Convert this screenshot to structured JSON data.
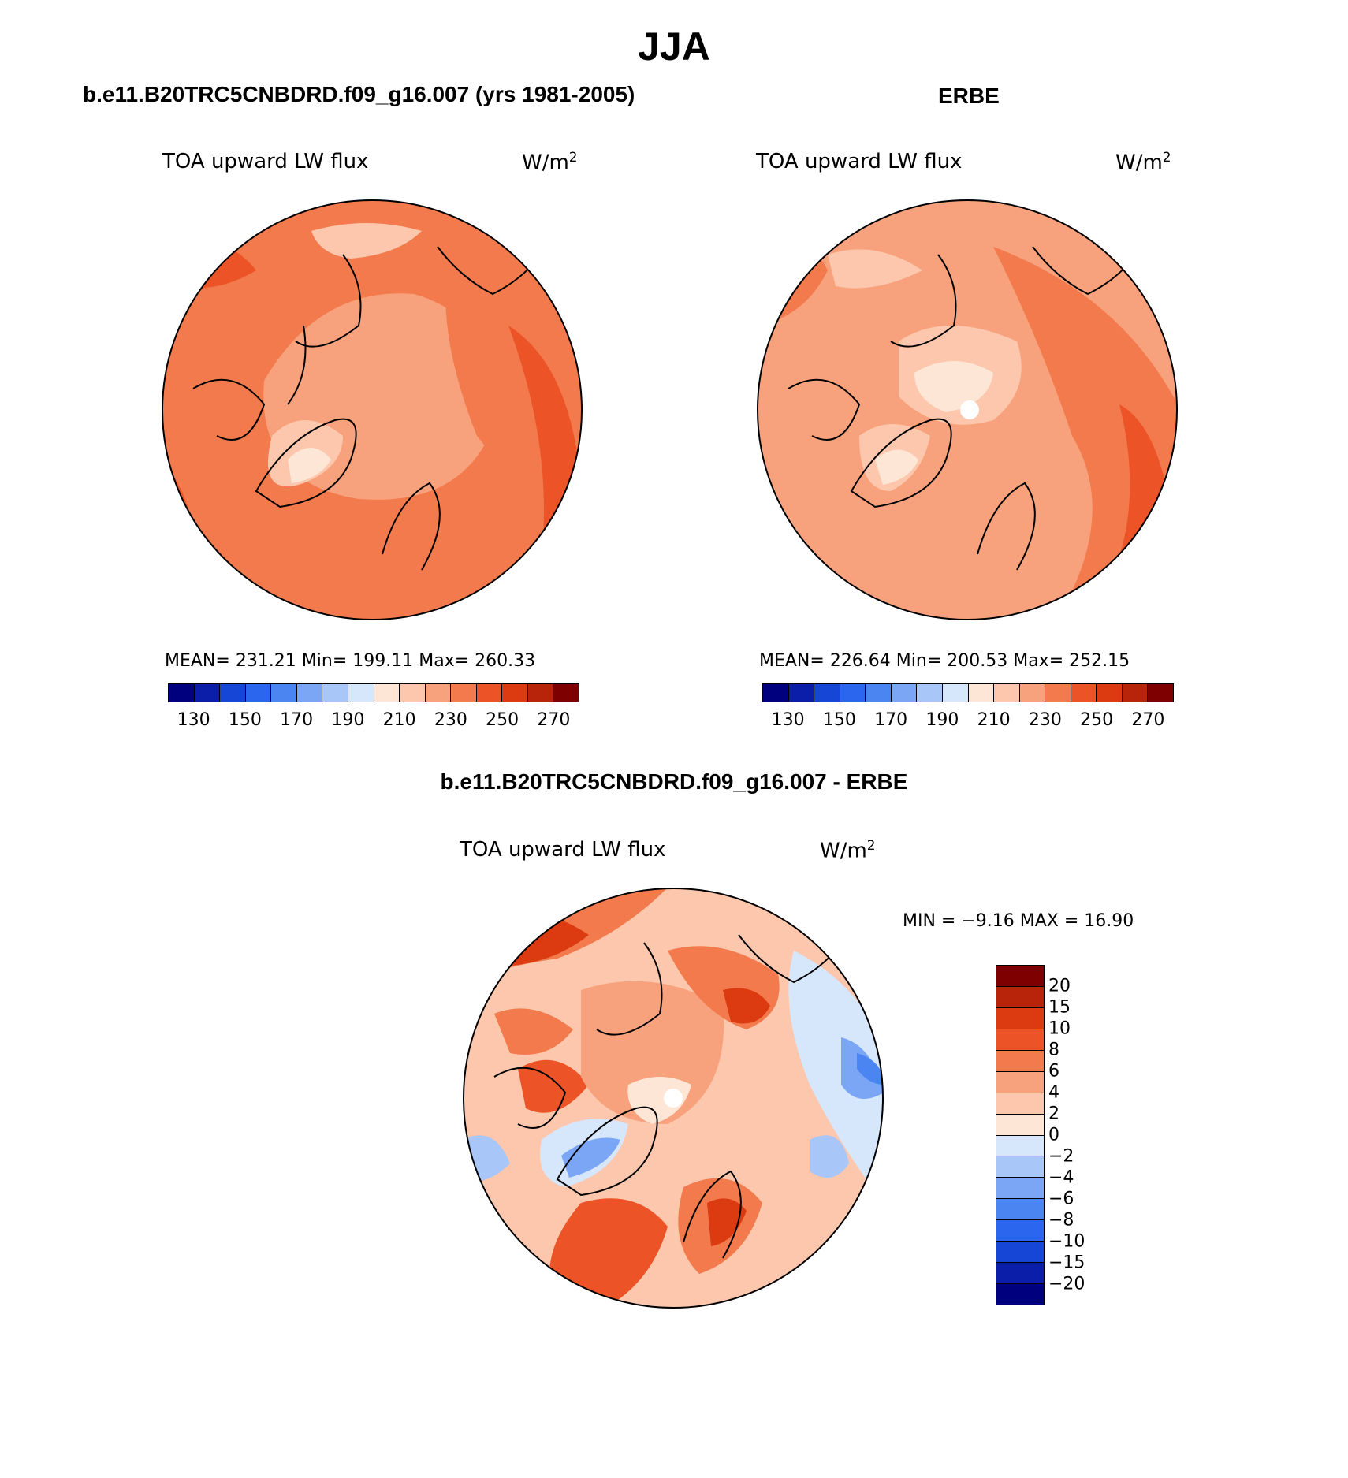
{
  "title": "JJA",
  "panels": [
    {
      "title": "b.e11.B20TRC5CNBDRD.f09_g16.007 (yrs 1981-2005)",
      "variable": "TOA upward LW flux",
      "units_base": "W/m",
      "units_exp": "2",
      "stats": "MEAN= 231.21   Min= 199.11   Max= 260.33"
    },
    {
      "title": "ERBE",
      "variable": "TOA upward LW flux",
      "units_base": "W/m",
      "units_exp": "2",
      "stats": "MEAN= 226.64   Min= 200.53   Max= 252.15"
    },
    {
      "title": "b.e11.B20TRC5CNBDRD.f09_g16.007 - ERBE",
      "variable": "TOA upward LW flux",
      "units_base": "W/m",
      "units_exp": "2",
      "stats": "MIN =   −9.16  MAX =   16.90"
    }
  ],
  "colorbar_abs": {
    "colors": [
      "#00007f",
      "#0a1eaa",
      "#1646d6",
      "#2a67ee",
      "#4a85f2",
      "#7aa6f5",
      "#a8c6f8",
      "#d6e6fb",
      "#fde6d6",
      "#fcc7ac",
      "#f8a27d",
      "#f27a4d",
      "#ec5428",
      "#dc3a10",
      "#b8240a",
      "#7f0000"
    ],
    "ticks": [
      "130",
      "150",
      "170",
      "190",
      "210",
      "230",
      "250",
      "270"
    ]
  },
  "colorbar_diff": {
    "colors": [
      "#7f0000",
      "#b8240a",
      "#dc3a10",
      "#ec5428",
      "#f27a4d",
      "#f8a27d",
      "#fcc7ac",
      "#fde6d6",
      "#d6e6fb",
      "#a8c6f8",
      "#7aa6f5",
      "#4a85f2",
      "#2a67ee",
      "#1646d6",
      "#0a1eaa",
      "#00007f"
    ],
    "ticks": [
      "20",
      "15",
      "10",
      "8",
      "6",
      "4",
      "2",
      "0",
      "−2",
      "−4",
      "−6",
      "−8",
      "−10",
      "−15",
      "−20"
    ]
  }
}
